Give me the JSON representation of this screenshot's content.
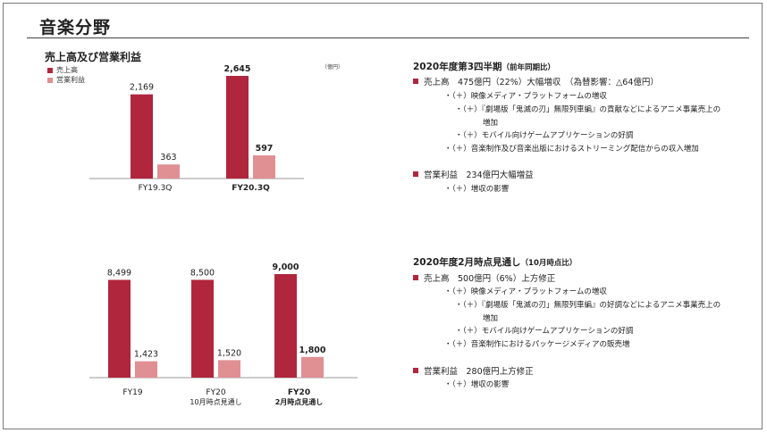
{
  "page": {
    "title": "音楽分野"
  },
  "section_title": "売上高及び営業利益",
  "legend": [
    {
      "label": "売上高",
      "color": "#b0263c"
    },
    {
      "label": "営業利益",
      "color": "#e08f93"
    }
  ],
  "unit": "（億円）",
  "chart_data": [
    {
      "type": "bar",
      "categories": [
        "FY19.3Q",
        "FY20.3Q"
      ],
      "bold_categories": [
        false,
        true
      ],
      "series": [
        {
          "name": "売上高",
          "values": [
            2169,
            2645
          ],
          "labels": [
            "2,169",
            "2,645"
          ],
          "color": "#b0263c"
        },
        {
          "name": "営業利益",
          "values": [
            363,
            597
          ],
          "labels": [
            "363",
            "597"
          ],
          "color": "#e08f93"
        }
      ]
    },
    {
      "type": "bar",
      "categories": [
        "FY19",
        "FY20\n10月時点見通し",
        "FY20\n2月時点見通し"
      ],
      "bold_categories": [
        false,
        false,
        true
      ],
      "series": [
        {
          "name": "売上高",
          "values": [
            8499,
            8500,
            9000
          ],
          "labels": [
            "8,499",
            "8,500",
            "9,000"
          ],
          "color": "#b0263c"
        },
        {
          "name": "営業利益",
          "values": [
            1423,
            1520,
            1800
          ],
          "labels": [
            "1,423",
            "1,520",
            "1,800"
          ],
          "color": "#e08f93"
        }
      ]
    }
  ],
  "right": {
    "q3": {
      "heading": "2020年度第3四半期",
      "heading_note": "（前年同期比）",
      "sales": "売上高　475億円（22%）大幅増収　（為替影響：△64億円）",
      "sales_items": [
        "・（＋）映像メディア・プラットフォームの増収",
        "・（＋）『劇場版「鬼滅の刃」無限列車編』の貢献などによるアニメ事業売上の",
        "増加",
        "・（＋）モバイル向けゲームアプリケーションの好調",
        "・（＋）音楽制作及び音楽出版におけるストリーミング配信からの収入増加"
      ],
      "op": "営業利益　234億円大幅増益",
      "op_items": [
        "・（＋）増収の影響"
      ]
    },
    "feb": {
      "heading": "2020年度2月時点見通し",
      "heading_note": "（10月時点比）",
      "sales": "売上高　500億円（6%）上方修正",
      "sales_items": [
        "・（＋）映像メディア・プラットフォームの増収",
        "・（＋）『劇場版「鬼滅の刃」無限列車編』の好調などによるアニメ事業売上の",
        "増加",
        "・（＋）モバイル向けゲームアプリケーションの好調",
        "・（＋）音楽制作におけるパッケージメディアの販売増"
      ],
      "op": "営業利益　280億円上方修正",
      "op_items": [
        "・（＋）増収の影響"
      ]
    }
  }
}
